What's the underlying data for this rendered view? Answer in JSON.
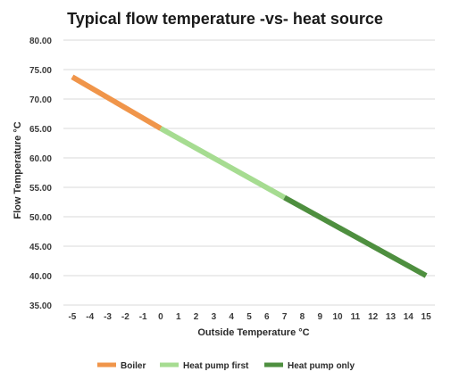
{
  "chart_data": {
    "type": "line",
    "title": "Typical flow temperature -vs- heat source",
    "xlabel": "Outside Temperature °C",
    "ylabel": "Flow Temperature °C",
    "categories": [
      "-5",
      "-4",
      "-3",
      "-2",
      "-1",
      "0",
      "1",
      "2",
      "3",
      "4",
      "5",
      "6",
      "7",
      "8",
      "9",
      "10",
      "11",
      "12",
      "13",
      "14",
      "15"
    ],
    "y_ticks": [
      "35.00",
      "40.00",
      "45.00",
      "50.00",
      "55.00",
      "60.00",
      "65.00",
      "70.00",
      "75.00",
      "80.00"
    ],
    "ylim": [
      35,
      80
    ],
    "grid": "horizontal",
    "legend_position": "bottom",
    "series": [
      {
        "name": "Boiler",
        "color": "#f0954a",
        "x": [
          -5,
          0
        ],
        "y": [
          73.75,
          65.0
        ]
      },
      {
        "name": "Heat pump first",
        "color": "#a6dc91",
        "x": [
          0,
          7
        ],
        "y": [
          65.0,
          53.25
        ]
      },
      {
        "name": "Heat pump only",
        "color": "#4e8f3f",
        "x": [
          7,
          15
        ],
        "y": [
          53.25,
          40.0
        ]
      }
    ]
  }
}
